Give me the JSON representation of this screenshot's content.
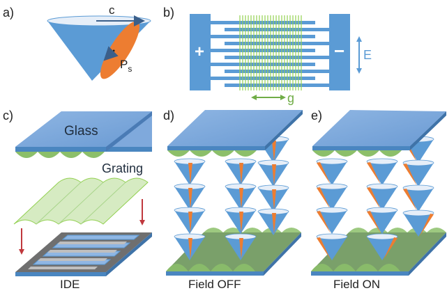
{
  "panels": {
    "a": {
      "label": "a)",
      "c_label": "c",
      "ps_label": "P",
      "ps_sub": "s"
    },
    "b": {
      "label": "b)",
      "plus": "+",
      "minus": "−",
      "e_label": "E",
      "g_label": "g"
    },
    "c": {
      "label": "c)",
      "glass": "Glass",
      "grating": "Grating",
      "caption": "IDE"
    },
    "d": {
      "label": "d)",
      "caption": "Field OFF"
    },
    "e": {
      "label": "e)",
      "caption": "Field ON"
    }
  },
  "colors": {
    "cone_blue": "#5b9bd5",
    "cone_top": "#e6eef8",
    "polarization_orange": "#ed7d31",
    "electrode_blue": "#5b9bd5",
    "electrode_dark": "#4a86c0",
    "grating_green": "#92d050",
    "grating_fill": "#d6ebc2",
    "wave_green": "#8cbf6a",
    "glass_blue": "#7fa9dc",
    "substrate_gray": "#7f7f7f",
    "arrow_red": "#c0383d",
    "e_arrow_blue": "#5b9bd5",
    "g_arrow_green": "#70ad47"
  }
}
